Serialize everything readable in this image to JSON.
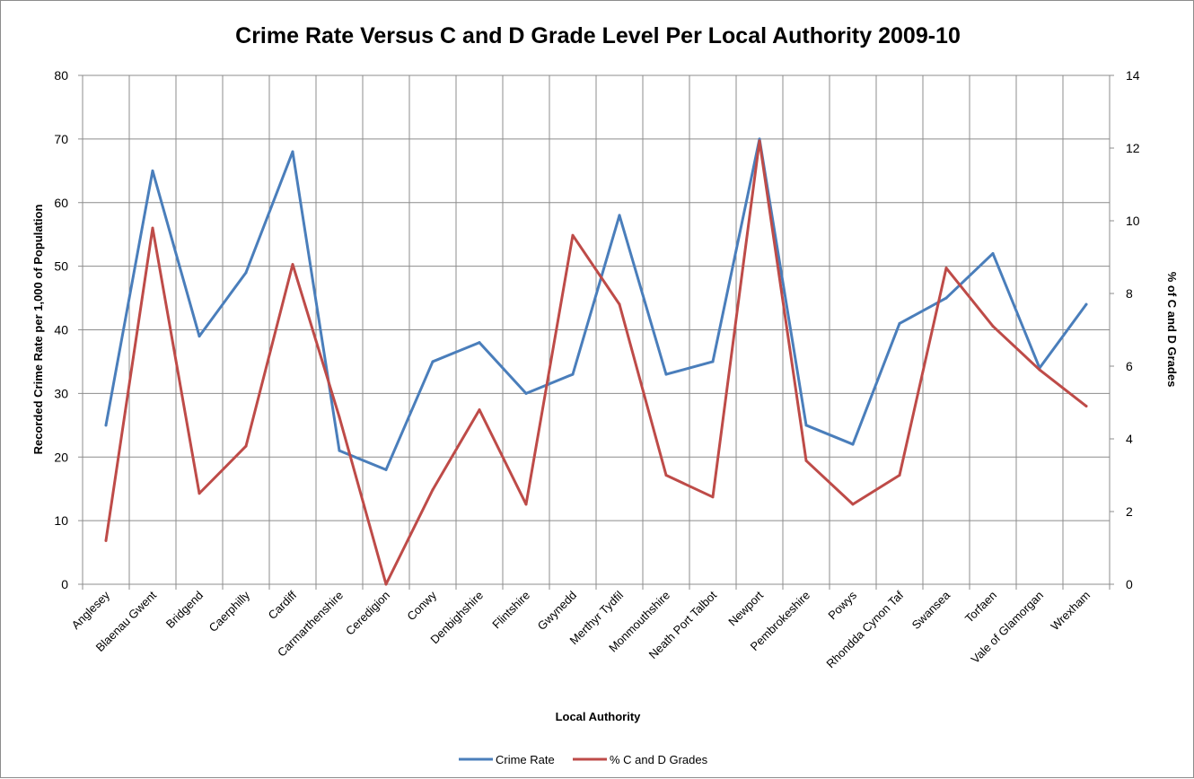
{
  "chart_data": {
    "type": "line",
    "title": "Crime Rate Versus C and D Grade Level Per Local Authority 2009-10",
    "xlabel": "Local Authority",
    "ylabel_left": "Recorded Crime Rate per 1,000 of Population",
    "ylabel_right": "% of C and D Grades",
    "ylim_left": [
      0,
      80
    ],
    "ylim_right": [
      0,
      14
    ],
    "yticks_left": [
      "0",
      "10",
      "20",
      "30",
      "40",
      "50",
      "60",
      "70",
      "80"
    ],
    "yticks_right": [
      "0",
      "2",
      "4",
      "6",
      "8",
      "10",
      "12",
      "14"
    ],
    "grid": true,
    "legend_position": "bottom",
    "categories": [
      "Anglesey",
      "Blaenau Gwent",
      "Bridgend",
      "Caerphilly",
      "Cardiff",
      "Carmarthenshire",
      "Ceredigion",
      "Conwy",
      "Denbighshire",
      "Flintshire",
      "Gwynedd",
      "Merthyr Tydfil",
      "Monmouthshire",
      "Neath Port Talbot",
      "Newport",
      "Pembrokeshire",
      "Powys",
      "Rhondda Cynon Taf",
      "Swansea",
      "Torfaen",
      "Vale of Glamorgan",
      "Wrexham"
    ],
    "series": [
      {
        "name": "Crime Rate",
        "axis": "left",
        "color": "#4a7ebb",
        "values": [
          25,
          65,
          39,
          49,
          68,
          21,
          18,
          35,
          38,
          30,
          33,
          58,
          33,
          35,
          70,
          25,
          22,
          41,
          45,
          52,
          34,
          44
        ]
      },
      {
        "name": "% C and D Grades",
        "axis": "right",
        "color": "#be4b48",
        "values": [
          1.2,
          9.8,
          2.5,
          3.8,
          8.8,
          4.6,
          0,
          2.6,
          4.8,
          2.2,
          9.6,
          7.7,
          3.0,
          2.4,
          12.2,
          3.4,
          2.2,
          3.0,
          8.7,
          7.1,
          5.9,
          4.9
        ]
      }
    ]
  }
}
